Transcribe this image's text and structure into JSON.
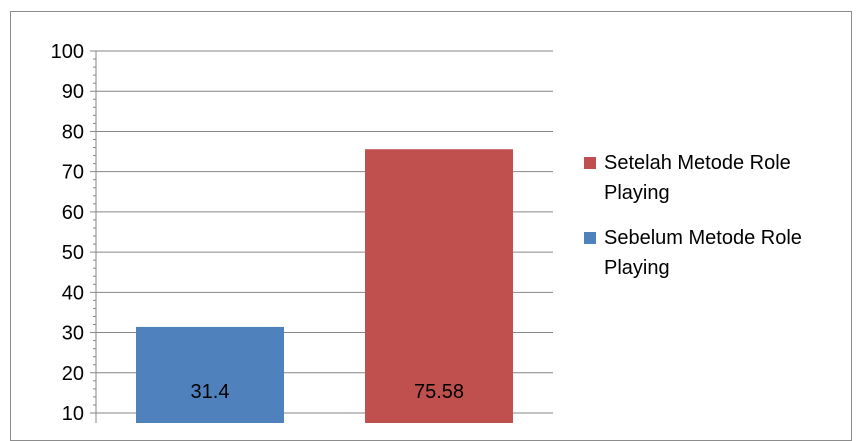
{
  "chart_data": {
    "type": "bar",
    "categories": [
      "Sebelum Metode Role Playing",
      "Setelah Metode Role Playing"
    ],
    "values": [
      31.4,
      75.58
    ],
    "value_labels": [
      "31.4",
      "75.58"
    ],
    "ylim": [
      10,
      100
    ],
    "yticks": [
      "10",
      "20",
      "30",
      "40",
      "50",
      "60",
      "70",
      "80",
      "90",
      "100"
    ],
    "grid": true,
    "legend_position": "right",
    "colors": [
      "#4f81bd",
      "#c0504d"
    ]
  },
  "legend": [
    {
      "label": "Setelah Metode Role Playing",
      "color": "#c0504d"
    },
    {
      "label": "Sebelum Metode Role Playing",
      "color": "#4f81bd"
    }
  ]
}
